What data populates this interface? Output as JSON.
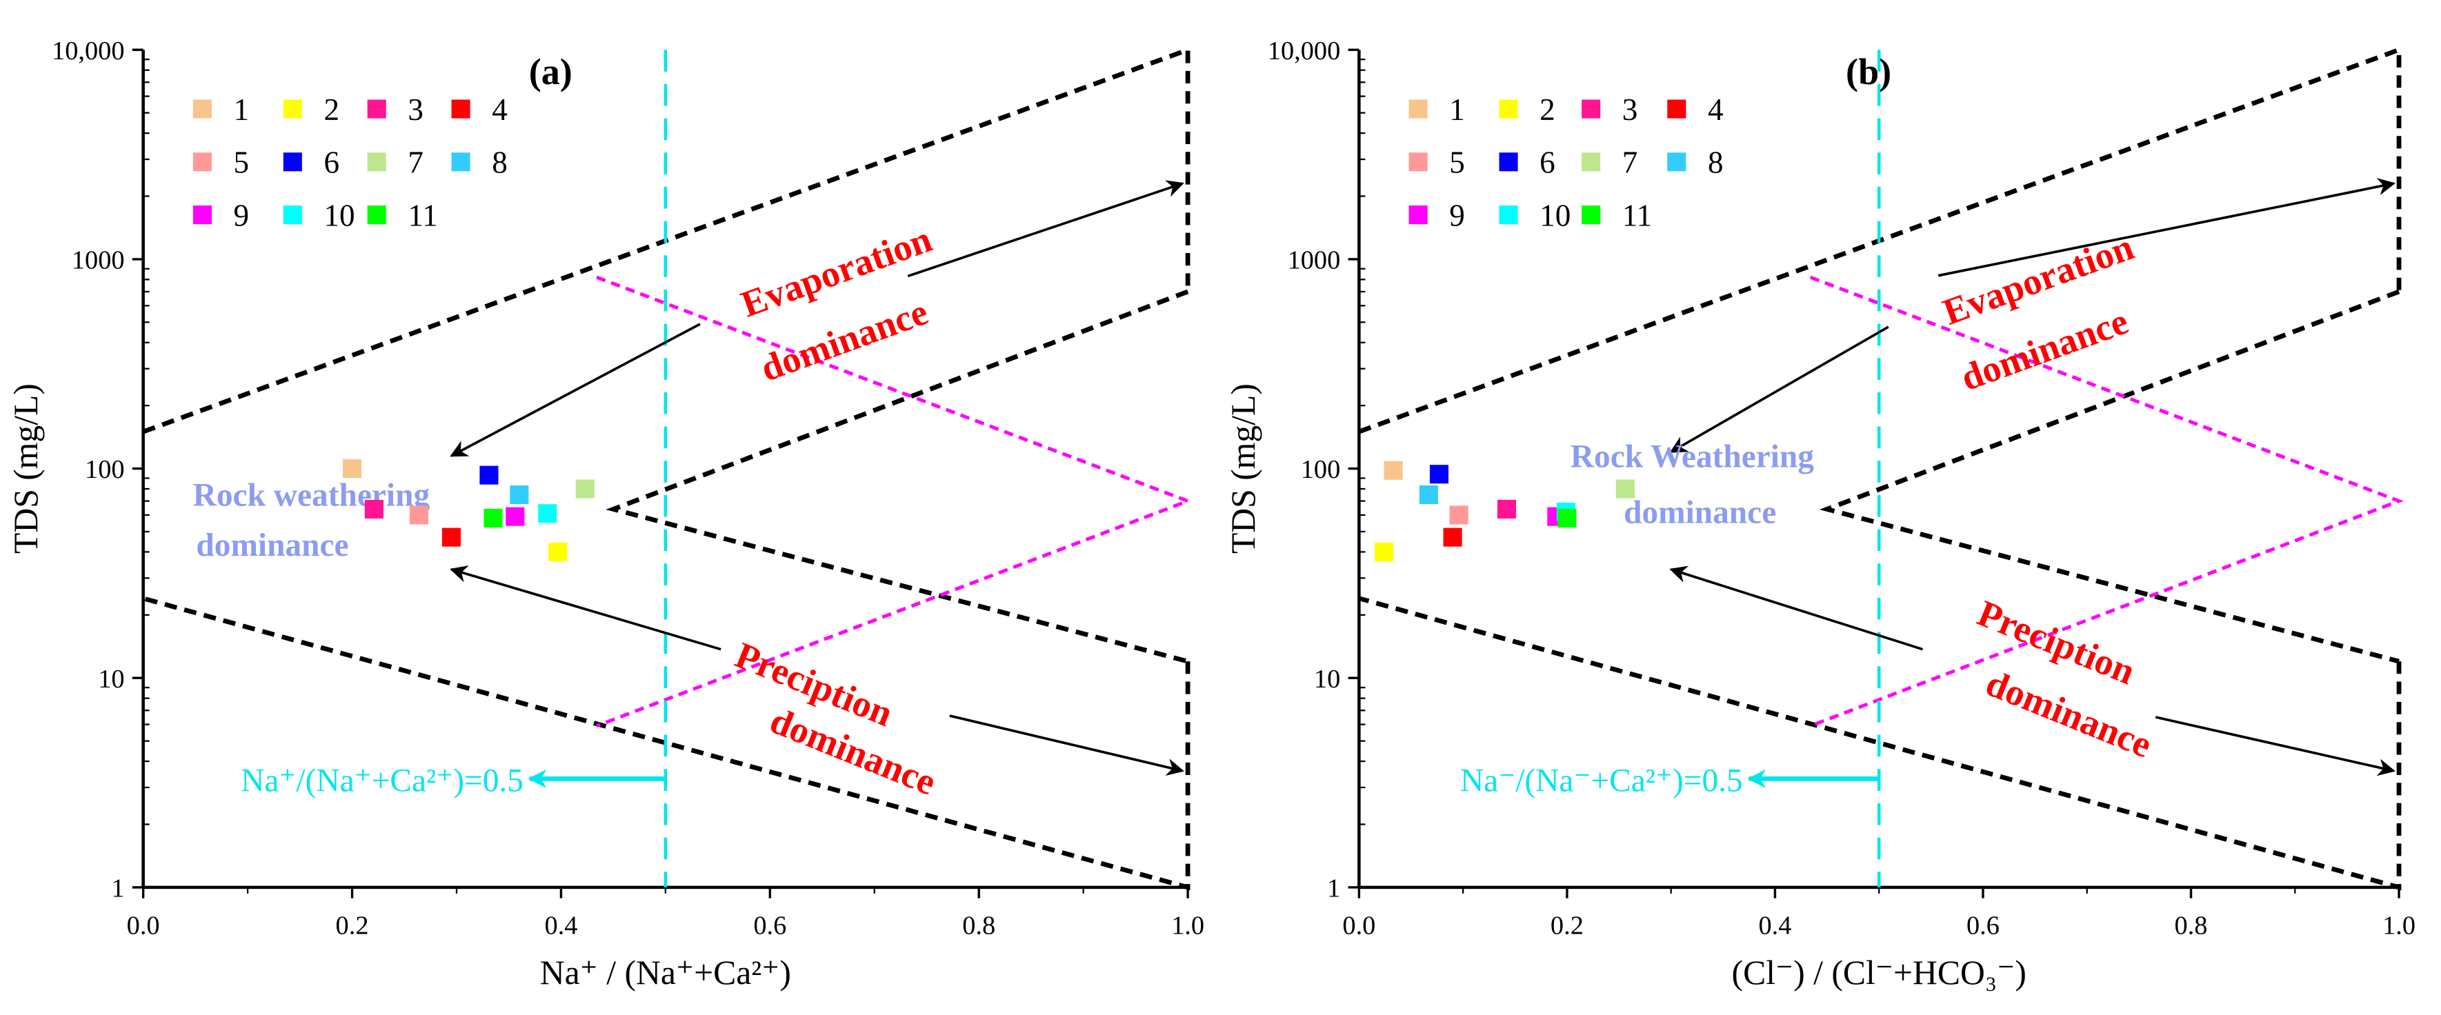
{
  "chart_data": [
    {
      "type": "scatter",
      "panel_label": "(a)",
      "xlabel": "Na⁺ / (Na⁺+Ca²⁺)",
      "ylabel": "TDS (mg/L)",
      "xlim": [
        0,
        1
      ],
      "ylim": [
        1,
        10000
      ],
      "yscale": "log",
      "xticks": [
        "0.0",
        "0.2",
        "0.4",
        "0.6",
        "0.8",
        "1.0"
      ],
      "yticks": [
        "1",
        "10",
        "100",
        "1000",
        "10,000"
      ],
      "grid": false,
      "legend_position": "top-left",
      "series": [
        {
          "name": "1",
          "color": "#f9c48c",
          "x": 0.2,
          "y": 100
        },
        {
          "name": "2",
          "color": "#ffff00",
          "x": 0.397,
          "y": 40
        },
        {
          "name": "3",
          "color": "#ff1493",
          "x": 0.221,
          "y": 64
        },
        {
          "name": "4",
          "color": "#ff0000",
          "x": 0.295,
          "y": 47
        },
        {
          "name": "5",
          "color": "#ff9999",
          "x": 0.264,
          "y": 60
        },
        {
          "name": "6",
          "color": "#0000ff",
          "x": 0.331,
          "y": 93
        },
        {
          "name": "7",
          "color": "#bde78e",
          "x": 0.423,
          "y": 80
        },
        {
          "name": "8",
          "color": "#33ccff",
          "x": 0.36,
          "y": 75
        },
        {
          "name": "9",
          "color": "#ff00ff",
          "x": 0.356,
          "y": 59
        },
        {
          "name": "10",
          "color": "#00ffff",
          "x": 0.387,
          "y": 61
        },
        {
          "name": "11",
          "color": "#00ff00",
          "x": 0.335,
          "y": 58
        }
      ],
      "annotations": {
        "evaporation": [
          "Evaporation",
          "dominance"
        ],
        "rock": [
          "Rock weathering",
          "dominance"
        ],
        "precipitation": [
          "Preciption",
          "dominance"
        ],
        "threshold": "Na⁺/(Na⁺+Ca²⁺)=0.5"
      },
      "threshold_x": 0.5,
      "colors": {
        "boundary": "#000000",
        "envelope": "#ff00ff",
        "threshold": "#00e5ee",
        "dominance_text": "#ff0000",
        "rock_text": "#8c9cf0"
      }
    },
    {
      "type": "scatter",
      "panel_label": "(b)",
      "xlabel": "(Cl⁻) / (Cl⁻+HCO₃⁻)",
      "ylabel": "TDS (mg/L)",
      "xlim": [
        0,
        1
      ],
      "ylim": [
        1,
        10000
      ],
      "yscale": "log",
      "xticks": [
        "0.0",
        "0.2",
        "0.4",
        "0.6",
        "0.8",
        "1.0"
      ],
      "yticks": [
        "1",
        "10",
        "100",
        "1000",
        "10,000"
      ],
      "grid": false,
      "legend_position": "top-left",
      "series": [
        {
          "name": "1",
          "color": "#f9c48c",
          "x": 0.033,
          "y": 98
        },
        {
          "name": "2",
          "color": "#ffff00",
          "x": 0.024,
          "y": 40
        },
        {
          "name": "3",
          "color": "#ff1493",
          "x": 0.142,
          "y": 64
        },
        {
          "name": "4",
          "color": "#ff0000",
          "x": 0.09,
          "y": 47
        },
        {
          "name": "5",
          "color": "#ff9999",
          "x": 0.096,
          "y": 60
        },
        {
          "name": "6",
          "color": "#0000ff",
          "x": 0.077,
          "y": 94
        },
        {
          "name": "7",
          "color": "#bde78e",
          "x": 0.256,
          "y": 80
        },
        {
          "name": "8",
          "color": "#33ccff",
          "x": 0.067,
          "y": 75
        },
        {
          "name": "9",
          "color": "#ff00ff",
          "x": 0.19,
          "y": 59
        },
        {
          "name": "10",
          "color": "#00ffff",
          "x": 0.199,
          "y": 62
        },
        {
          "name": "11",
          "color": "#00ff00",
          "x": 0.2,
          "y": 58
        }
      ],
      "annotations": {
        "evaporation": [
          "Evaporation",
          "dominance"
        ],
        "rock": [
          "Rock Weathering",
          "dominance"
        ],
        "precipitation": [
          "Preciption",
          "dominance"
        ],
        "threshold": "Na⁻/(Na⁻+Ca²⁺)=0.5"
      },
      "threshold_x": 0.5,
      "colors": {
        "boundary": "#000000",
        "envelope": "#ff00ff",
        "threshold": "#00e5ee",
        "dominance_text": "#ff0000",
        "rock_text": "#8c9cf0"
      }
    }
  ]
}
